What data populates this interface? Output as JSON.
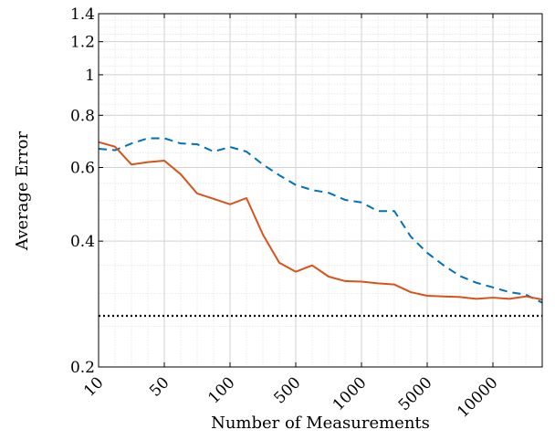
{
  "chart_data": {
    "type": "line",
    "xlabel": "Number of Measurements",
    "ylabel": "Average Error",
    "y_scale": "log",
    "ylim": [
      0.2,
      1.4
    ],
    "yticks": [
      0.2,
      0.4,
      0.6,
      0.8,
      1,
      1.2,
      1.4
    ],
    "ytick_labels": [
      "0.2",
      "0.4",
      "0.6",
      "0.8",
      "1",
      "1.2",
      "1.4"
    ],
    "x_scale": "categorical",
    "tick_positions": [
      0,
      4,
      8,
      12,
      16,
      20,
      24
    ],
    "xtick_labels": [
      "10",
      "50",
      "100",
      "500",
      "1000",
      "5000",
      "10000"
    ],
    "grid": true,
    "series": [
      {
        "style": "dashed",
        "color": "#0072BD",
        "values": [
          0.665,
          0.66,
          0.685,
          0.705,
          0.705,
          0.685,
          0.682,
          0.655,
          0.672,
          0.655,
          0.61,
          0.575,
          0.545,
          0.53,
          0.522,
          0.502,
          0.495,
          0.472,
          0.472,
          0.41,
          0.375,
          0.35,
          0.33,
          0.318,
          0.31,
          0.302,
          0.298,
          0.285
        ]
      },
      {
        "style": "solid",
        "color": "#D95319",
        "values": [
          0.69,
          0.673,
          0.61,
          0.618,
          0.623,
          0.578,
          0.52,
          0.505,
          0.49,
          0.507,
          0.415,
          0.355,
          0.338,
          0.35,
          0.329,
          0.321,
          0.32,
          0.317,
          0.315,
          0.302,
          0.296,
          0.295,
          0.294,
          0.291,
          0.293,
          0.291,
          0.295,
          0.29
        ]
      },
      {
        "style": "dotted",
        "color": "#000000",
        "values": [
          0.265,
          0.265
        ]
      }
    ]
  }
}
